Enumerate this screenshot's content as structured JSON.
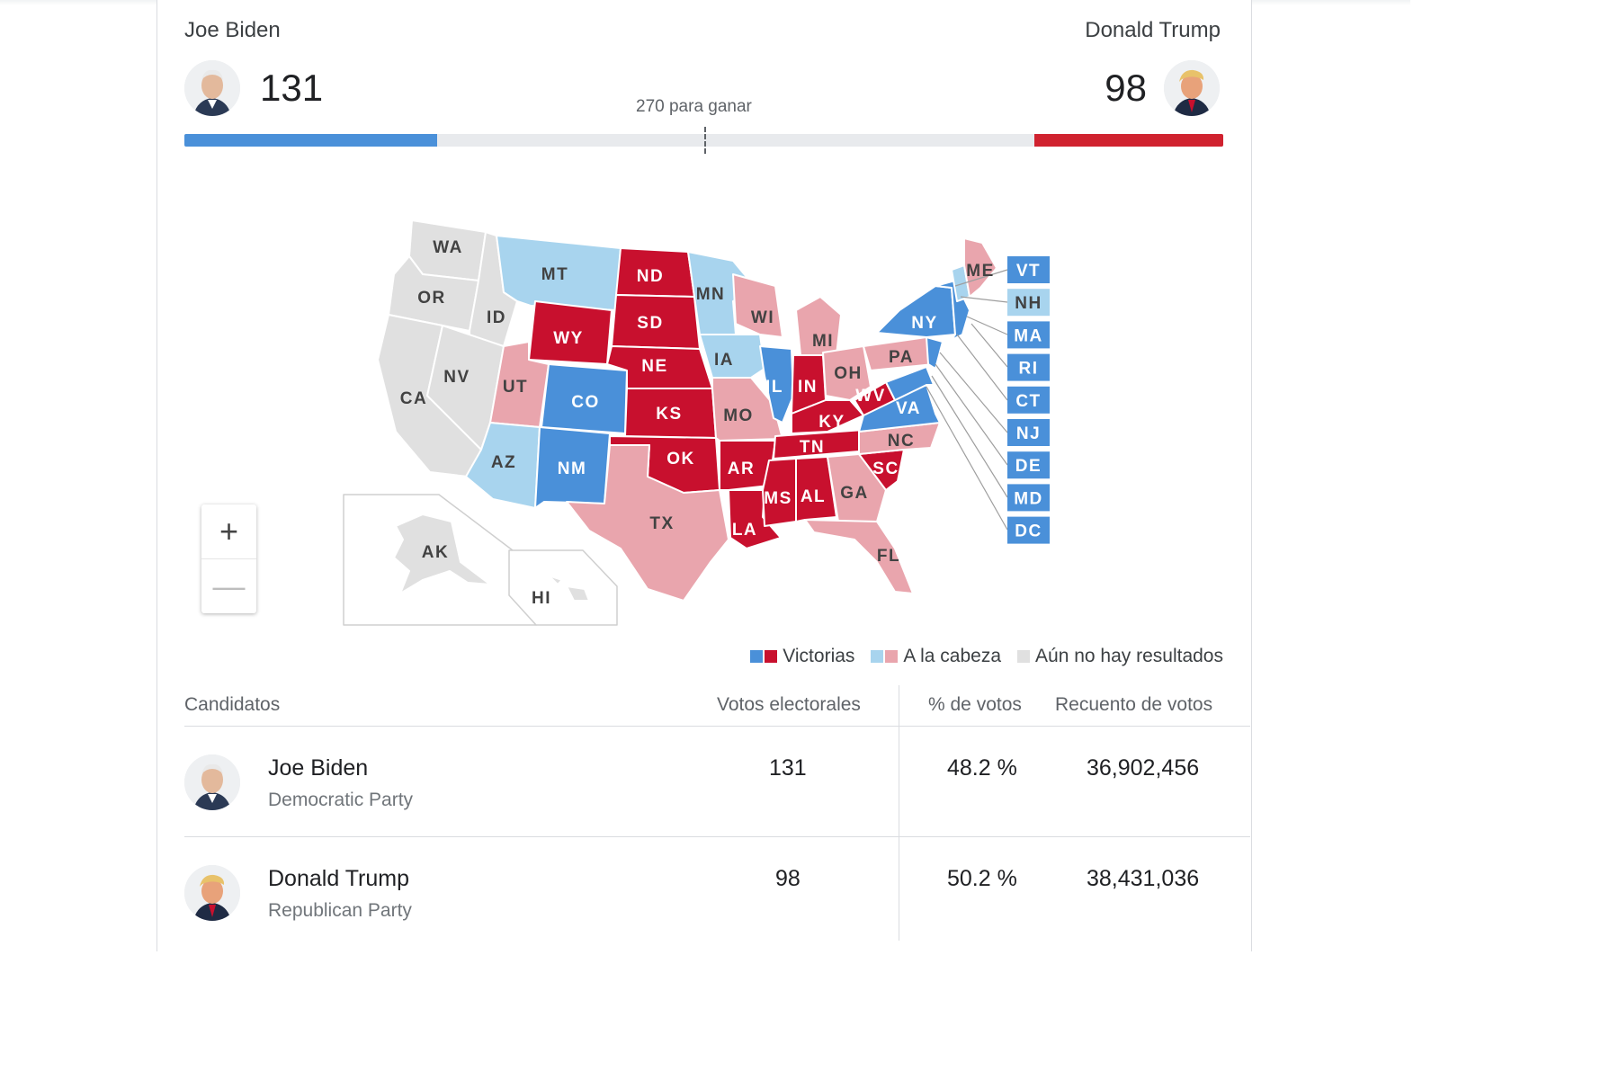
{
  "header": {
    "dem_name": "Joe Biden",
    "rep_name": "Donald Trump",
    "dem_votes": "131",
    "rep_votes": "98",
    "to_win": "270 para ganar",
    "dem_share": 0.2437,
    "rep_share": 0.1822
  },
  "colors": {
    "dem_win": "#4a90d9",
    "dem_lead": "#a8d4ee",
    "rep_win": "#c8102e",
    "rep_lead": "#e9a5ad",
    "no_result": "#e0e0e0"
  },
  "states": {
    "WA": "none",
    "OR": "none",
    "CA": "none",
    "ID": "none",
    "NV": "none",
    "MT": "dem_lead",
    "WY": "rep_win",
    "UT": "rep_lead",
    "AZ": "dem_lead",
    "CO": "dem_win",
    "NM": "dem_win",
    "ND": "rep_win",
    "SD": "rep_win",
    "NE": "rep_win",
    "KS": "rep_win",
    "OK": "rep_win",
    "TX": "rep_lead",
    "MN": "dem_lead",
    "IA": "dem_lead",
    "MO": "rep_lead",
    "AR": "rep_win",
    "LA": "rep_win",
    "WI": "rep_lead",
    "IL": "dem_win",
    "MI": "rep_lead",
    "IN": "rep_win",
    "OH": "rep_lead",
    "KY": "rep_win",
    "TN": "rep_win",
    "MS": "rep_win",
    "AL": "rep_win",
    "GA": "rep_lead",
    "FL": "rep_lead",
    "SC": "rep_win",
    "NC": "rep_lead",
    "WV": "rep_win",
    "VA": "dem_win",
    "PA": "rep_lead",
    "NY": "dem_win",
    "ME": "rep_lead",
    "AK": "none",
    "HI": "none"
  },
  "northeast_boxes": [
    {
      "label": "VT",
      "status": "dem_win"
    },
    {
      "label": "NH",
      "status": "dem_lead"
    },
    {
      "label": "MA",
      "status": "dem_win"
    },
    {
      "label": "RI",
      "status": "dem_win"
    },
    {
      "label": "CT",
      "status": "dem_win"
    },
    {
      "label": "NJ",
      "status": "dem_win"
    },
    {
      "label": "DE",
      "status": "dem_win"
    },
    {
      "label": "MD",
      "status": "dem_win"
    },
    {
      "label": "DC",
      "status": "dem_win"
    }
  ],
  "zoom": {
    "in_icon": "+",
    "out_icon": "—"
  },
  "legend": {
    "wins": "Victorias",
    "leading": "A la cabeza",
    "no_results": "Aún no hay resultados"
  },
  "table": {
    "headers": {
      "candidates": "Candidatos",
      "electoral": "Votos electorales",
      "pct": "% de votos",
      "count": "Recuento de votos"
    },
    "rows": [
      {
        "name": "Joe Biden",
        "party": "Democratic Party",
        "electoral": "131",
        "pct": "48.2 %",
        "count": "36,902,456"
      },
      {
        "name": "Donald Trump",
        "party": "Republican Party",
        "electoral": "98",
        "pct": "50.2 %",
        "count": "38,431,036"
      }
    ]
  }
}
